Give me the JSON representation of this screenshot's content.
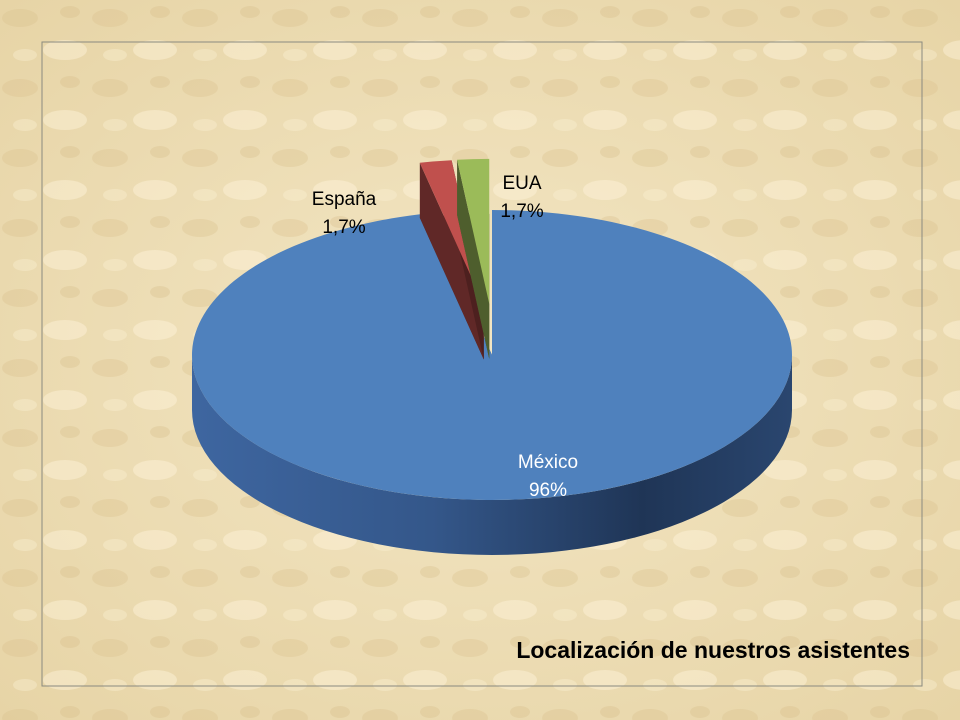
{
  "chart_data": {
    "type": "pie",
    "title": "Localización de nuestros asistentes",
    "categories": [
      "México",
      "España",
      "EUA"
    ],
    "values": [
      96,
      1.7,
      1.7
    ],
    "value_labels": [
      "96%",
      "1,7%",
      "1,7%"
    ],
    "colors": [
      "#4f81bd",
      "#c0504d",
      "#9bbb59"
    ]
  }
}
